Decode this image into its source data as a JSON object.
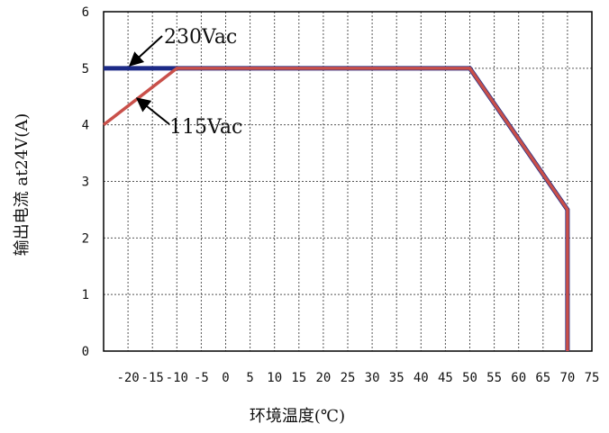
{
  "chart_data": {
    "type": "line",
    "xlabel": "环境温度(℃)",
    "ylabel": "输出电流 at24V(A)",
    "xlim": [
      -25,
      75
    ],
    "ylim": [
      0,
      6
    ],
    "x_ticks": [
      -20,
      -15,
      -10,
      -5,
      0,
      5,
      10,
      15,
      20,
      25,
      30,
      35,
      40,
      45,
      50,
      55,
      60,
      65,
      70,
      75
    ],
    "y_ticks": [
      0,
      1,
      2,
      3,
      4,
      5,
      6
    ],
    "grid": true,
    "series": [
      {
        "name": "230Vac",
        "color": "#1c2a86",
        "points": [
          [
            -25,
            5
          ],
          [
            -10,
            5
          ],
          [
            50,
            5
          ],
          [
            70,
            2.5
          ],
          [
            70,
            0
          ]
        ]
      },
      {
        "name": "115Vac",
        "color": "#c9504a",
        "points": [
          [
            -25,
            4
          ],
          [
            -10,
            5
          ],
          [
            50,
            5
          ],
          [
            70,
            2.5
          ],
          [
            70,
            0
          ]
        ]
      }
    ],
    "annotations": [
      {
        "text": "230Vac",
        "target": [
          -20,
          5
        ]
      },
      {
        "text": "115Vac",
        "target": [
          -20,
          4.5
        ]
      }
    ]
  }
}
